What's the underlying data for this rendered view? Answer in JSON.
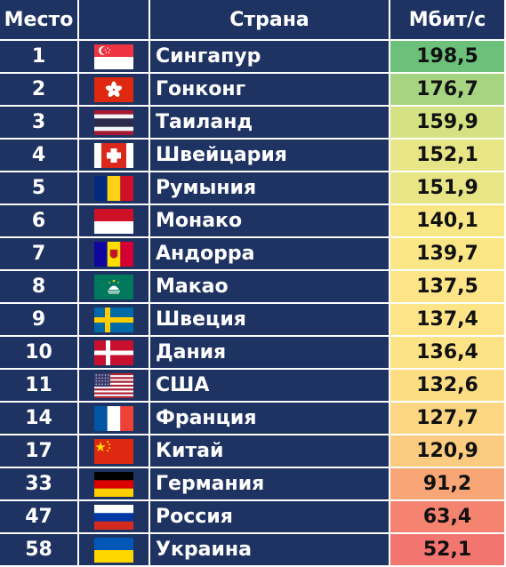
{
  "chart_data": {
    "type": "table",
    "columns": [
      "Место",
      "",
      "Страна",
      "Мбит/с"
    ],
    "rows": [
      {
        "rank": "1",
        "flag": "singapore-flag-icon",
        "country": "Сингапур",
        "speed": "198,5",
        "value": 198.5,
        "color": "#6dc07a"
      },
      {
        "rank": "2",
        "flag": "hong-kong-flag-icon",
        "country": "Гонконг",
        "speed": "176,7",
        "value": 176.7,
        "color": "#a6d481"
      },
      {
        "rank": "3",
        "flag": "thailand-flag-icon",
        "country": "Таиланд",
        "speed": "159,9",
        "value": 159.9,
        "color": "#d5e283"
      },
      {
        "rank": "4",
        "flag": "switzerland-flag-icon",
        "country": "Швейцария",
        "speed": "152,1",
        "value": 152.1,
        "color": "#e7e586"
      },
      {
        "rank": "5",
        "flag": "romania-flag-icon",
        "country": "Румыния",
        "speed": "151,9",
        "value": 151.9,
        "color": "#e7e586"
      },
      {
        "rank": "6",
        "flag": "monaco-flag-icon",
        "country": "Монако",
        "speed": "140,1",
        "value": 140.1,
        "color": "#f9e785"
      },
      {
        "rank": "7",
        "flag": "andorra-flag-icon",
        "country": "Андорра",
        "speed": "139,7",
        "value": 139.7,
        "color": "#fbe686"
      },
      {
        "rank": "8",
        "flag": "macau-flag-icon",
        "country": "Макао",
        "speed": "137,5",
        "value": 137.5,
        "color": "#fce487"
      },
      {
        "rank": "9",
        "flag": "sweden-flag-icon",
        "country": "Швеция",
        "speed": "137,4",
        "value": 137.4,
        "color": "#fce487"
      },
      {
        "rank": "10",
        "flag": "denmark-flag-icon",
        "country": "Дания",
        "speed": "136,4",
        "value": 136.4,
        "color": "#fce386"
      },
      {
        "rank": "11",
        "flag": "usa-flag-icon",
        "country": "США",
        "speed": "132,6",
        "value": 132.6,
        "color": "#fcdd84"
      },
      {
        "rank": "14",
        "flag": "france-flag-icon",
        "country": "Франция",
        "speed": "127,7",
        "value": 127.7,
        "color": "#fcd682"
      },
      {
        "rank": "17",
        "flag": "china-flag-icon",
        "country": "Китай",
        "speed": "120,9",
        "value": 120.9,
        "color": "#fbcc7f"
      },
      {
        "rank": "33",
        "flag": "germany-flag-icon",
        "country": "Германия",
        "speed": "91,2",
        "value": 91.2,
        "color": "#f8a676"
      },
      {
        "rank": "47",
        "flag": "russia-flag-icon",
        "country": "Россия",
        "speed": "63,4",
        "value": 63.4,
        "color": "#f48370"
      },
      {
        "rank": "58",
        "flag": "ukraine-flag-icon",
        "country": "Украина",
        "speed": "52,1",
        "value": 52.1,
        "color": "#f27570"
      }
    ],
    "colors": {
      "header_bg": "#1f3363",
      "row_bg": "#1f3363",
      "grid": "#ffffff",
      "text": "#ffffff",
      "value_text": "#111111"
    }
  }
}
